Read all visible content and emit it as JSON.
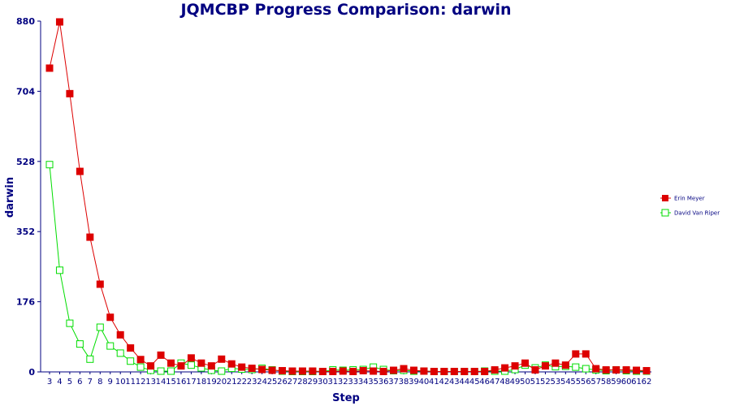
{
  "chart_data": {
    "type": "line",
    "title": "JQMCBP Progress Comparison: darwin",
    "xlabel": "Step",
    "ylabel": "darwin",
    "ylim": [
      0,
      880
    ],
    "yticks": [
      0,
      176,
      352,
      528,
      704,
      880
    ],
    "x": [
      3,
      4,
      5,
      6,
      7,
      8,
      9,
      10,
      11,
      12,
      13,
      14,
      15,
      16,
      17,
      18,
      19,
      20,
      21,
      22,
      23,
      24,
      25,
      26,
      27,
      28,
      29,
      30,
      31,
      32,
      33,
      34,
      35,
      36,
      37,
      38,
      39,
      40,
      41,
      42,
      43,
      44,
      45,
      46,
      47,
      48,
      49,
      50,
      51,
      52,
      53,
      54,
      55,
      56,
      57,
      58,
      59,
      60,
      61,
      62
    ],
    "grid": false,
    "legend_position": "right",
    "series": [
      {
        "name": "Erin Meyer",
        "color": "#dd0000",
        "marker": "filled-square",
        "values": [
          762,
          878,
          698,
          503,
          338,
          220,
          137,
          93,
          60,
          31,
          15,
          42,
          22,
          15,
          35,
          22,
          15,
          32,
          20,
          12,
          9,
          6,
          4,
          3,
          2,
          2,
          2,
          1,
          1,
          2,
          1,
          3,
          2,
          1,
          4,
          8,
          4,
          2,
          1,
          1,
          1,
          1,
          1,
          1,
          5,
          10,
          15,
          22,
          5,
          15,
          22,
          17,
          45,
          45,
          8,
          5,
          5,
          5,
          4,
          3
        ]
      },
      {
        "name": "David Van Riper",
        "color": "#00dd00",
        "marker": "open-square",
        "values": [
          520,
          255,
          122,
          70,
          32,
          112,
          65,
          47,
          27,
          12,
          4,
          2,
          2,
          22,
          17,
          10,
          4,
          2,
          9,
          7,
          6,
          9,
          5,
          2,
          1,
          1,
          1,
          1,
          5,
          4,
          5,
          6,
          12,
          6,
          3,
          4,
          2,
          2,
          1,
          1,
          1,
          1,
          1,
          2,
          2,
          2,
          6,
          17,
          10,
          17,
          13,
          14,
          12,
          8,
          5,
          3,
          5,
          3,
          2,
          2
        ]
      }
    ]
  }
}
